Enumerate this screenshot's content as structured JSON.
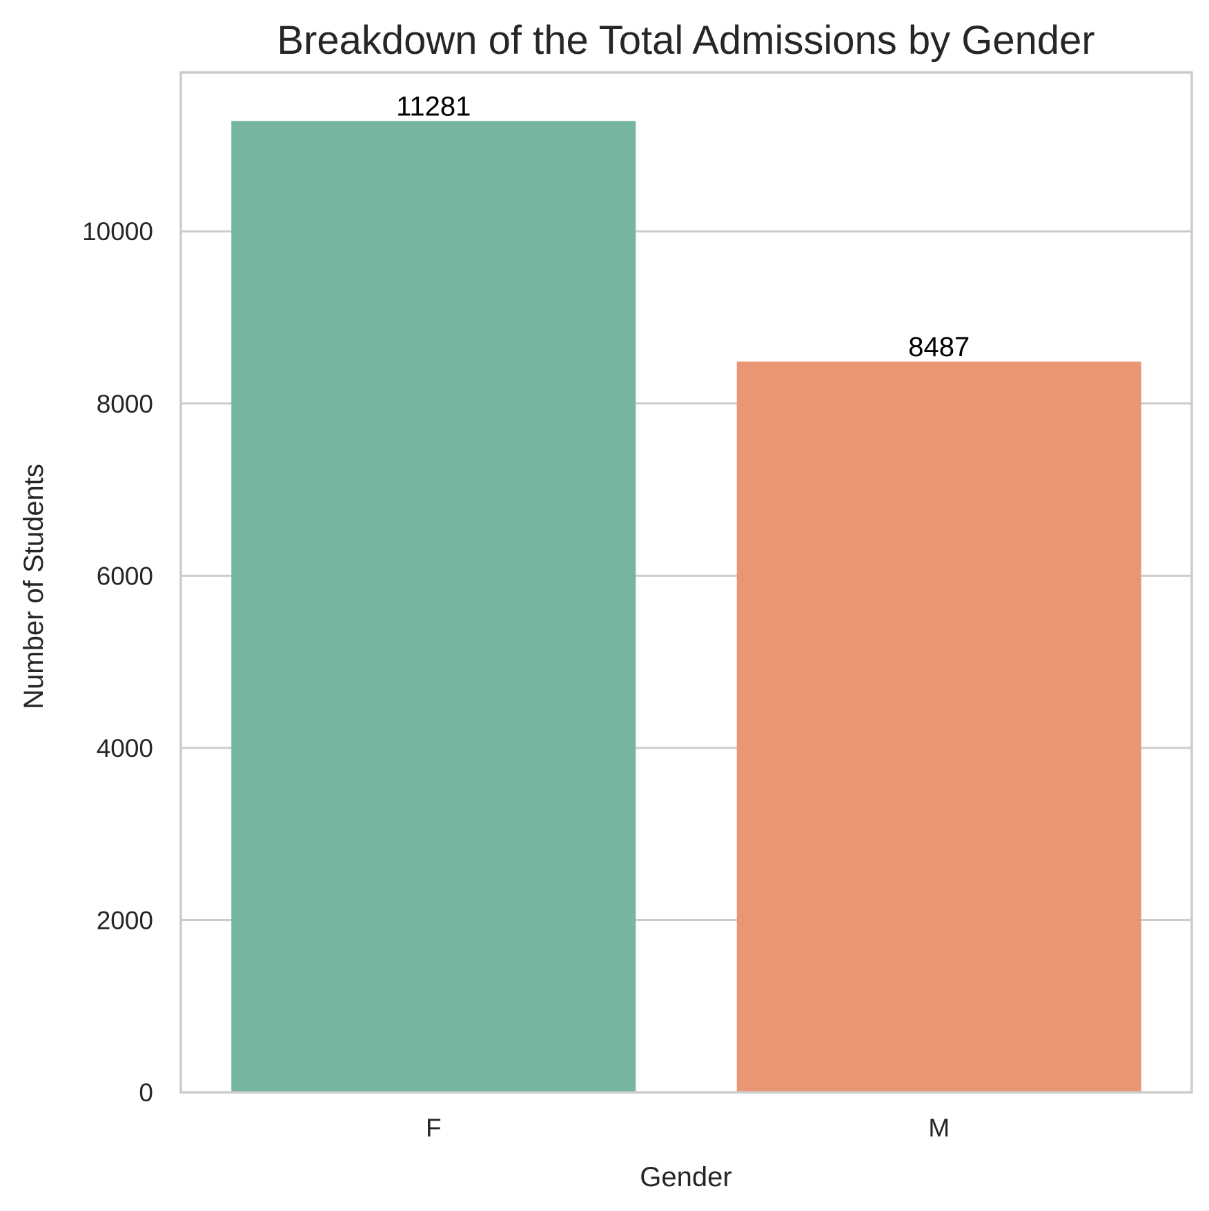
{
  "chart_data": {
    "type": "bar",
    "title": "Breakdown of the Total Admissions by Gender",
    "xlabel": "Gender",
    "ylabel": "Number of Students",
    "categories": [
      "F",
      "M"
    ],
    "values": [
      11281,
      8487
    ],
    "data_labels": [
      "11281",
      "8487"
    ],
    "bar_colors": [
      "#76b5a0",
      "#e89674"
    ],
    "ylim": [
      0,
      11845
    ],
    "yticks": [
      0,
      2000,
      4000,
      6000,
      8000,
      10000
    ],
    "ytick_labels": [
      "0",
      "2000",
      "4000",
      "6000",
      "8000",
      "10000"
    ],
    "grid": true,
    "grid_axis": "y",
    "legend": "none"
  }
}
